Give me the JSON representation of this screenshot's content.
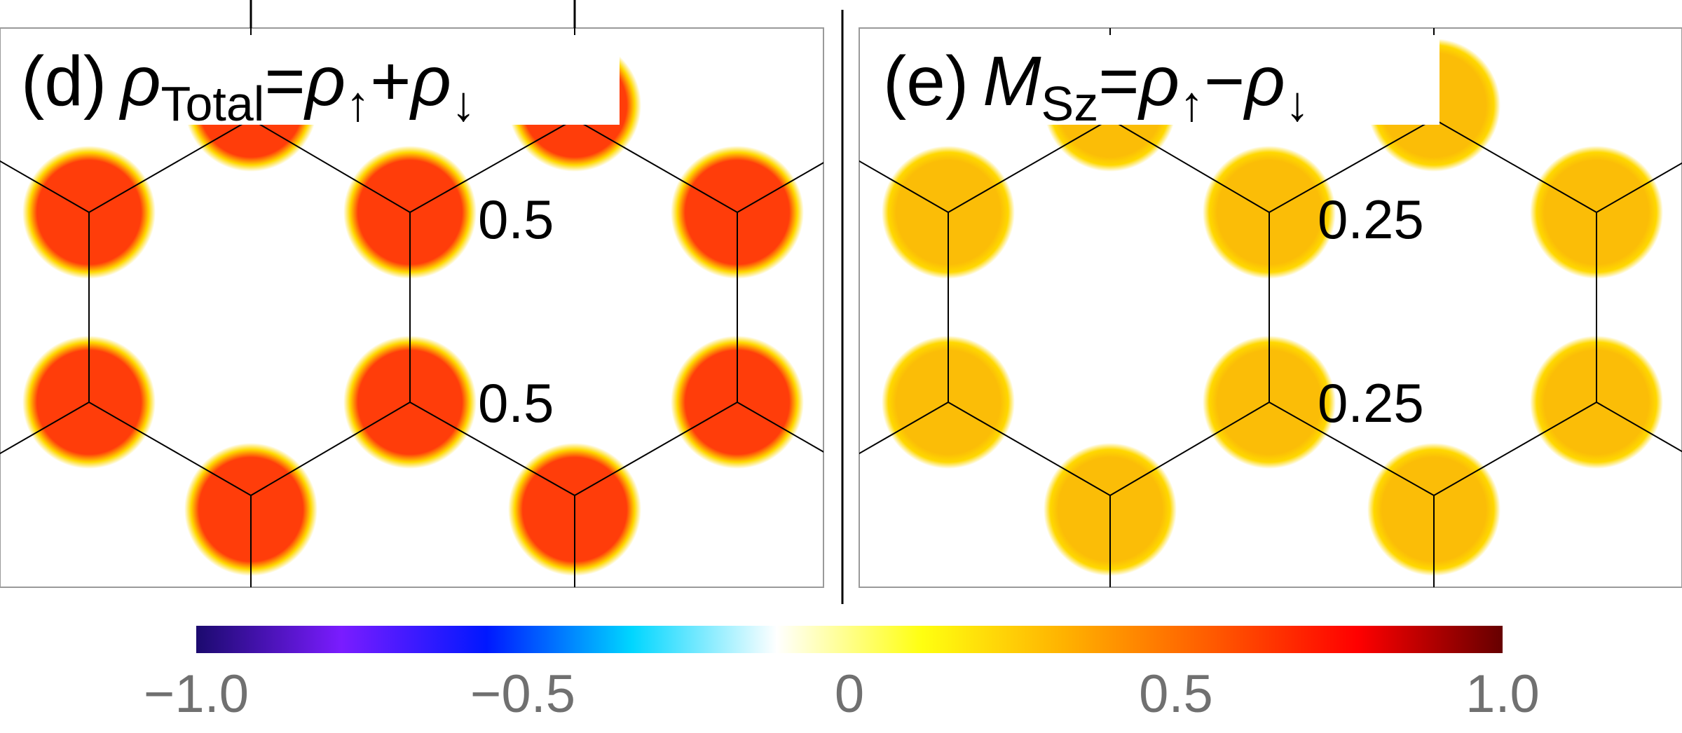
{
  "panels": [
    {
      "id": "d",
      "title_prefix": "(d)",
      "rho": "ρ",
      "title_sub": "Total",
      "eq": "=",
      "rho2": "ρ",
      "up": "↑",
      "op": "+",
      "rho3": "ρ",
      "down": "↓",
      "value_label_upper": "0.5",
      "value_label_lower": "0.5",
      "site_value": 0.5,
      "site_color": "#ff3d0a"
    },
    {
      "id": "e",
      "title_prefix": "(e)",
      "rho": "M",
      "title_sub": "Sz",
      "eq": "=",
      "rho2": "ρ",
      "up": "↑",
      "op": "−",
      "rho3": "ρ",
      "down": "↓",
      "value_label_upper": "0.25",
      "value_label_lower": "0.25",
      "site_value": 0.25,
      "site_color": "#fbbd07"
    }
  ],
  "colorbar": {
    "ticks": [
      "−1.0",
      "−0.5",
      "0",
      "0.5",
      "1.0"
    ],
    "min": -1.0,
    "max": 1.0,
    "stops": [
      "#1b0a6e",
      "#7a1cff",
      "#0018ff",
      "#00d6ff",
      "#ffffff",
      "#ffff10",
      "#ffb000",
      "#ff5a00",
      "#ff0000",
      "#660000"
    ]
  }
}
